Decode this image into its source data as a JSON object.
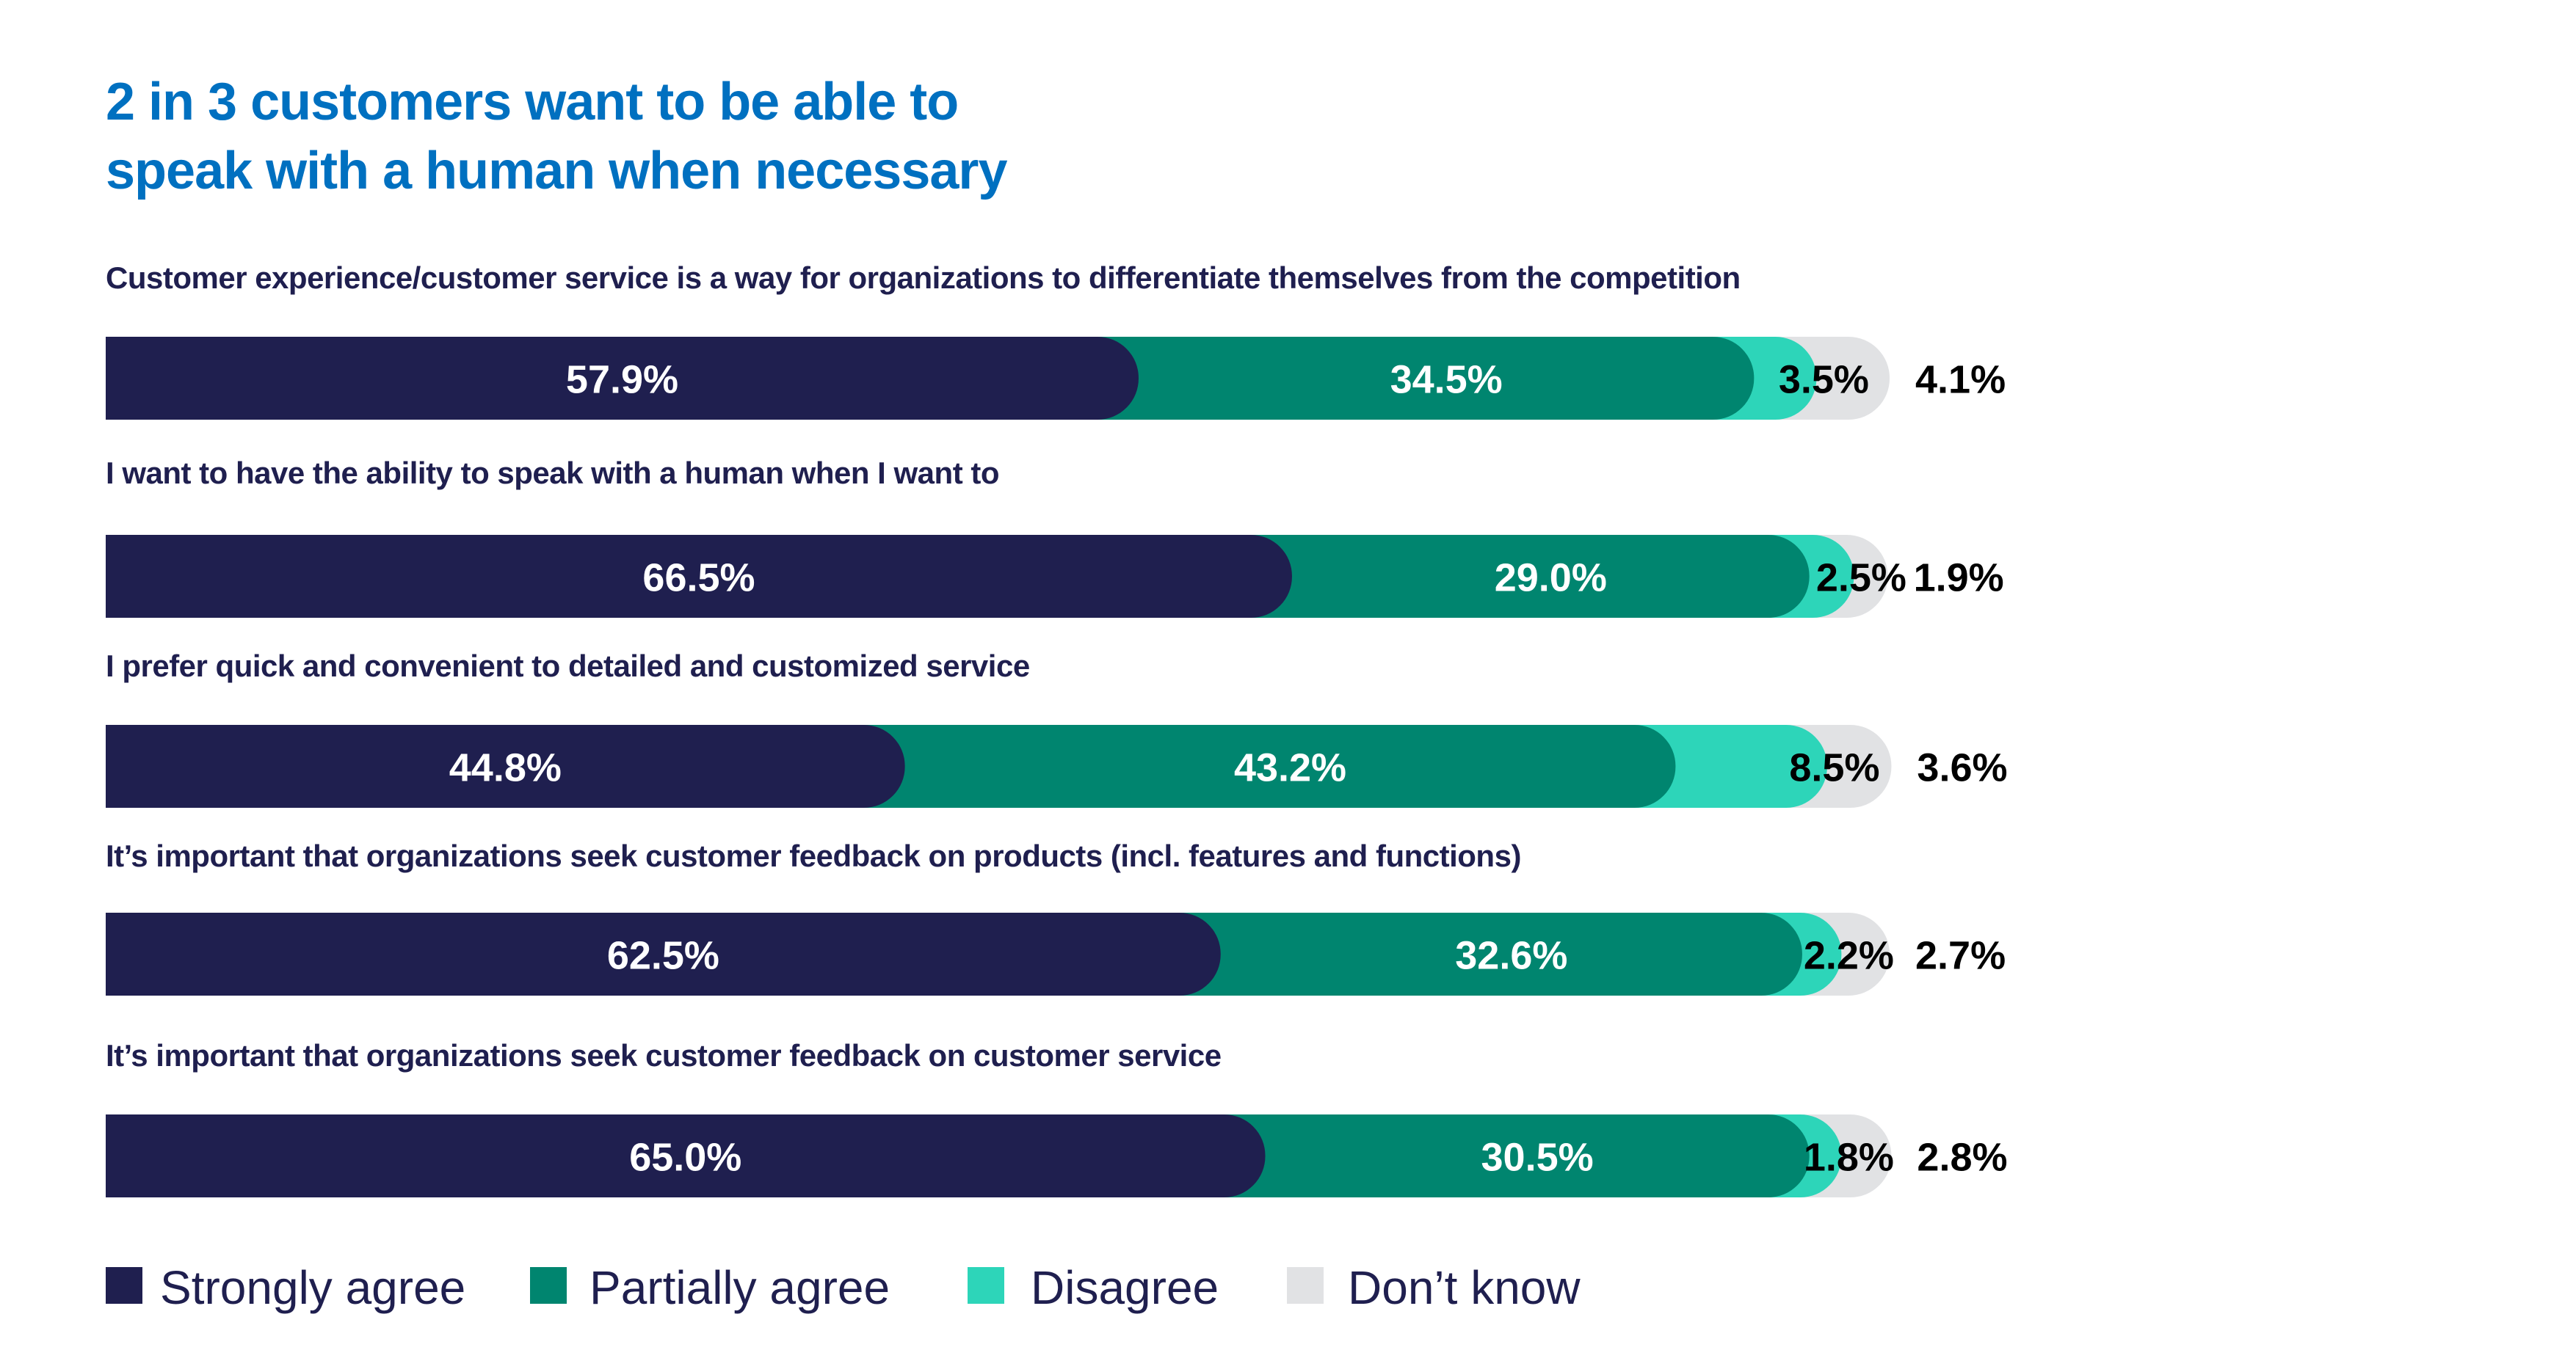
{
  "chart_data": {
    "type": "bar",
    "orientation": "horizontal",
    "stacked": true,
    "title": "2 in 3 customers want to be able to speak with a human when necessary",
    "title_lines": [
      "2 in 3 customers want to be able to",
      "speak with a human when necessary"
    ],
    "categories": [
      "Customer experience/customer service is a way for organizations to differentiate themselves from the competition",
      "I want to have the ability to speak with a human when I want to",
      "I prefer quick and convenient to detailed and customized service",
      "It’s important that organizations seek customer feedback on products (incl. features and functions)",
      "It’s important that organizations seek customer feedback on customer service"
    ],
    "series": [
      {
        "name": "Strongly agree",
        "color": "#1f1f4f",
        "values": [
          57.9,
          66.5,
          44.8,
          62.5,
          65.0
        ],
        "labels": [
          "57.9%",
          "66.5%",
          "44.8%",
          "62.5%",
          "65.0%"
        ]
      },
      {
        "name": "Partially agree",
        "color": "#00856f",
        "values": [
          34.5,
          29.0,
          43.2,
          32.6,
          30.5
        ],
        "labels": [
          "34.5%",
          "29.0%",
          "43.2%",
          "32.6%",
          "30.5%"
        ]
      },
      {
        "name": "Disagree",
        "color": "#2dd5b9",
        "values": [
          3.5,
          2.5,
          8.5,
          2.2,
          1.8
        ],
        "labels": [
          "3.5%",
          "2.5%",
          "8.5%",
          "2.2%",
          "1.8%"
        ]
      },
      {
        "name": "Don’t know",
        "color": "#e1e2e4",
        "values": [
          4.1,
          1.9,
          3.6,
          2.7,
          2.8
        ],
        "labels": [
          "4.1%",
          "1.9%",
          "3.6%",
          "2.7%",
          "2.8%"
        ]
      }
    ],
    "unit": "%",
    "xlim": [
      0,
      100
    ],
    "grid": false,
    "legend": "bottom-left"
  },
  "colors": {
    "title": "#0070c0",
    "text": "#1f1f4f"
  }
}
